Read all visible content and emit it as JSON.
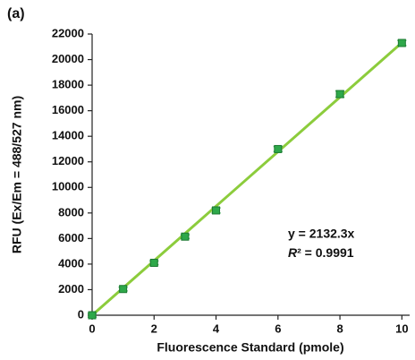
{
  "chart_data": {
    "type": "scatter",
    "panel_label": "(a)",
    "xlabel": "Fluorescence Standard (pmole)",
    "ylabel": "RFU (Ex/Em = 488/527 nm)",
    "x": [
      0,
      1,
      2,
      3,
      4,
      6,
      8,
      10
    ],
    "series": [
      {
        "color": "#2ea84a",
        "values": [
          0,
          2050,
          4100,
          6150,
          8200,
          13000,
          17300,
          21300
        ],
        "errors": [
          150,
          150,
          150,
          150,
          200,
          200,
          250,
          200
        ]
      }
    ],
    "fit": {
      "slope": 2132.3,
      "x": [
        0,
        10
      ],
      "color": "#8ccc3c"
    },
    "annotations": [
      "y = 2132.3x",
      "R² = 0.9991"
    ],
    "xlim": [
      0,
      10.25
    ],
    "xticks": [
      0,
      2,
      4,
      6,
      8,
      10
    ],
    "ylim": [
      0,
      22000
    ],
    "yticks": [
      0,
      2000,
      4000,
      6000,
      8000,
      10000,
      12000,
      14000,
      16000,
      18000,
      20000,
      22000
    ]
  }
}
